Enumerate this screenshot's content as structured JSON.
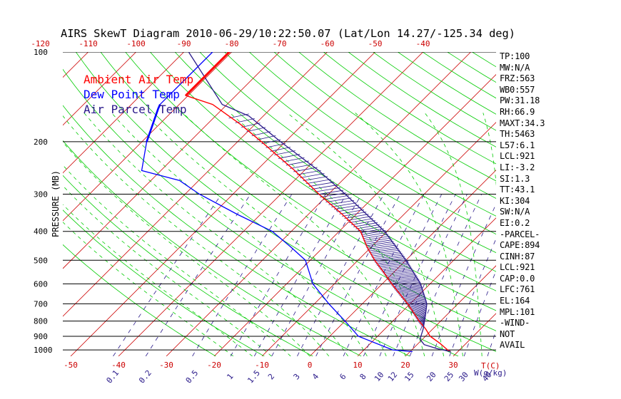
{
  "chart_data": {
    "type": "line",
    "title": "AIRS SkewT Diagram 2010-06-29/10:22:50.07 (Lat/Lon 14.27/-125.34 deg)",
    "ylabel": "PRESSURE (MB)",
    "xlabel": "T(C)",
    "mixing_ratio_label": "W(g/kg)",
    "y_scale": "log",
    "ylim": [
      1050,
      100
    ],
    "pressure_ticks": [
      100,
      200,
      300,
      400,
      500,
      600,
      700,
      800,
      900,
      1000
    ],
    "bottom_temp_ticks": [
      -50,
      -40,
      -30,
      -20,
      -10,
      0,
      10,
      20,
      30
    ],
    "top_temp_ticks": [
      -120,
      -110,
      -100,
      -90,
      -80,
      -70,
      -60,
      -50,
      -40
    ],
    "mixing_ratio_ticks": [
      "0.1",
      "0.2",
      "0.5",
      "1",
      "1.5",
      "2",
      "3",
      "4",
      "6",
      "8",
      "10",
      "12",
      "15",
      "20",
      "25",
      "30",
      "40"
    ],
    "colors": {
      "ambient": "#ff0000",
      "dewpoint": "#0000ff",
      "parcel": "#2a1a8a",
      "isotherms": "#cc0000",
      "dry_adiabats": "#00cc00",
      "moist_adiabats": "#00cc00",
      "mixing_ratio": "#2a1a8a",
      "isobars": "#000000"
    },
    "legend": {
      "placement": "top-left",
      "items": [
        "Ambient Air Temp",
        "Dew Point Temp",
        "Air Parcel Temp"
      ]
    },
    "series": [
      {
        "name": "Ambient Air Temp",
        "points": [
          {
            "p": 100,
            "t": -80.5
          },
          {
            "p": 140,
            "t": -80.5
          },
          {
            "p": 150,
            "t": -73
          },
          {
            "p": 175,
            "t": -63
          },
          {
            "p": 200,
            "t": -55
          },
          {
            "p": 250,
            "t": -42
          },
          {
            "p": 300,
            "t": -32
          },
          {
            "p": 350,
            "t": -23
          },
          {
            "p": 400,
            "t": -15.5
          },
          {
            "p": 450,
            "t": -11
          },
          {
            "p": 500,
            "t": -6.5
          },
          {
            "p": 550,
            "t": -2
          },
          {
            "p": 600,
            "t": 2
          },
          {
            "p": 700,
            "t": 9.5
          },
          {
            "p": 800,
            "t": 15.5
          },
          {
            "p": 850,
            "t": 18.5
          },
          {
            "p": 900,
            "t": 21
          },
          {
            "p": 950,
            "t": 24.5
          },
          {
            "p": 1000,
            "t": 27.5
          },
          {
            "p": 1013,
            "t": 28.5
          }
        ]
      },
      {
        "name": "Dew Point Temp",
        "points": [
          {
            "p": 100,
            "t": -84
          },
          {
            "p": 150,
            "t": -84
          },
          {
            "p": 155,
            "t": -83.5
          },
          {
            "p": 200,
            "t": -79
          },
          {
            "p": 250,
            "t": -74
          },
          {
            "p": 270,
            "t": -64
          },
          {
            "p": 300,
            "t": -57
          },
          {
            "p": 350,
            "t": -45
          },
          {
            "p": 400,
            "t": -34
          },
          {
            "p": 450,
            "t": -27
          },
          {
            "p": 500,
            "t": -21
          },
          {
            "p": 600,
            "t": -14.5
          },
          {
            "p": 700,
            "t": -7
          },
          {
            "p": 800,
            "t": 0
          },
          {
            "p": 900,
            "t": 6
          },
          {
            "p": 1000,
            "t": 16
          },
          {
            "p": 1013,
            "t": 20.5
          }
        ]
      },
      {
        "name": "Air Parcel Temp",
        "points": [
          {
            "p": 1013,
            "t": 28.5
          },
          {
            "p": 990,
            "t": 25
          },
          {
            "p": 960,
            "t": 21.5
          },
          {
            "p": 921,
            "t": 19.5
          },
          {
            "p": 850,
            "t": 18
          },
          {
            "p": 761,
            "t": 15.5
          },
          {
            "p": 700,
            "t": 13.5
          },
          {
            "p": 600,
            "t": 8
          },
          {
            "p": 500,
            "t": 0
          },
          {
            "p": 400,
            "t": -10.5
          },
          {
            "p": 300,
            "t": -26.5
          },
          {
            "p": 250,
            "t": -37
          },
          {
            "p": 200,
            "t": -51
          },
          {
            "p": 164,
            "t": -63
          },
          {
            "p": 150,
            "t": -71
          },
          {
            "p": 100,
            "t": -89
          }
        ]
      }
    ],
    "stats": [
      "TP:100",
      "MW:N/A",
      "FRZ:563",
      "WB0:557",
      "PW:31.18",
      "RH:66.9",
      "MAXT:34.3",
      "TH:5463",
      "L57:6.1",
      "LCL:921",
      "LI:-3.2",
      "SI:1.3",
      "TT:43.1",
      "KI:304",
      "SW:N/A",
      "EI:0.2",
      "-PARCEL-",
      "CAPE:894",
      "CINH:87",
      "LCL:921",
      "CAP:0.0",
      "LFC:761",
      "EL:164",
      "MPL:101",
      "-WIND-",
      "NOT",
      "AVAIL"
    ]
  }
}
